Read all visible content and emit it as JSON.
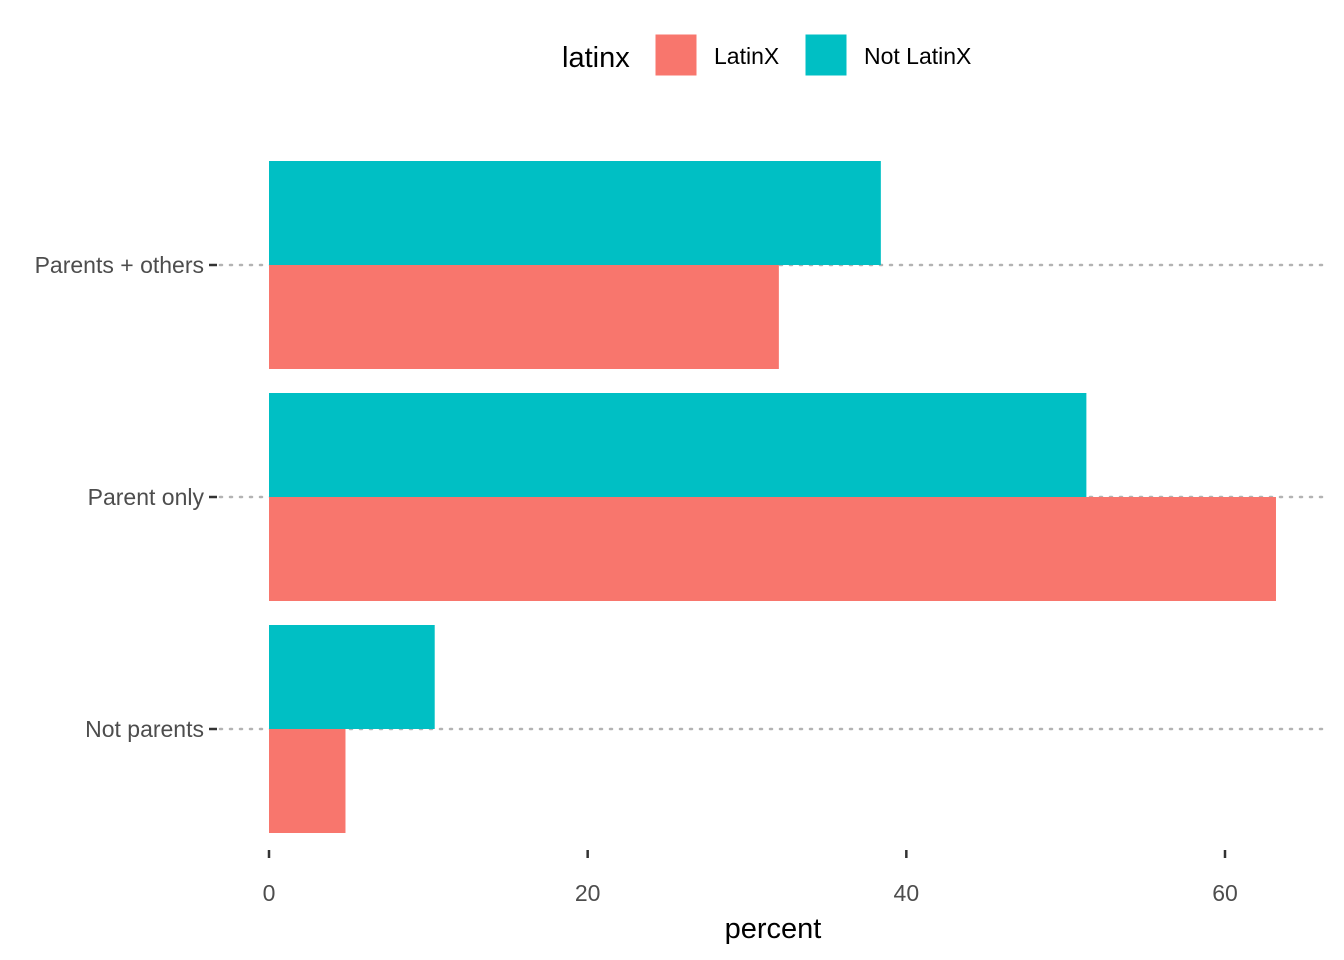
{
  "chart_data": {
    "type": "bar",
    "orientation": "horizontal",
    "categories": [
      "Parents + others",
      "Parent only",
      "Not parents"
    ],
    "series": [
      {
        "name": "LatinX",
        "values": [
          32.0,
          63.2,
          4.8
        ],
        "color": "#F8766D"
      },
      {
        "name": "Not LatinX",
        "values": [
          38.4,
          51.3,
          10.4
        ],
        "color": "#00BFC4"
      }
    ],
    "legend": {
      "title": "latinx",
      "position": "top"
    },
    "xlabel": "percent",
    "ylabel": "",
    "xlim": [
      0,
      66
    ],
    "x_ticks": [
      0,
      20,
      40,
      60
    ],
    "grid": {
      "major_y": "dotted",
      "major_x": false
    }
  }
}
